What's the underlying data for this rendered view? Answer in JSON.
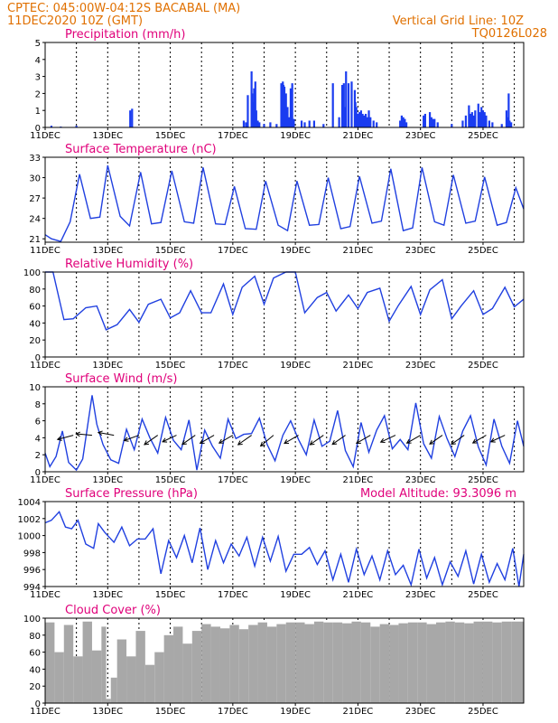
{
  "header": {
    "line1": "CPTEC:   045:00W-04:12S   BACABAL (MA)",
    "line2": "11DEC2020 10Z (GMT)",
    "grid_note": "Vertical Grid Line: 10Z",
    "model_id": "TQ0126L028"
  },
  "x_axis": {
    "start_day": 11,
    "end_day": 26.3,
    "tick_labels": [
      "11DEC",
      "13DEC",
      "15DEC",
      "17DEC",
      "19DEC",
      "21DEC",
      "23DEC",
      "25DEC"
    ],
    "tick_days": [
      11,
      13,
      15,
      17,
      19,
      21,
      23,
      25
    ]
  },
  "colors": {
    "line": "#2040e0",
    "bar": "#1a3cf0",
    "cloud": "#a8a8a8",
    "title": "#e0007a",
    "header": "#e07000"
  },
  "chart_data": [
    {
      "id": "precipitation",
      "type": "bar",
      "title": "Precipitation (mm/h)",
      "ylim": [
        0,
        5
      ],
      "yticks": [
        "0",
        "1",
        "2",
        "3",
        "4",
        "5"
      ],
      "grid": "dotted vertical at 10Z daily",
      "x_day": [
        11.2,
        11.5,
        12.0,
        13.72,
        13.78,
        17.35,
        17.42,
        17.48,
        17.6,
        17.62,
        17.65,
        17.68,
        17.72,
        17.75,
        17.8,
        17.85,
        18.0,
        18.2,
        18.4,
        18.55,
        18.6,
        18.62,
        18.65,
        18.7,
        18.75,
        18.8,
        18.85,
        18.9,
        18.95,
        19.2,
        19.3,
        19.45,
        19.6,
        19.9,
        20.2,
        20.4,
        20.5,
        20.55,
        20.6,
        20.62,
        20.7,
        20.8,
        20.9,
        20.92,
        20.95,
        21.0,
        21.05,
        21.1,
        21.15,
        21.2,
        21.25,
        21.3,
        21.35,
        21.4,
        21.5,
        21.6,
        22.35,
        22.4,
        22.45,
        22.5,
        22.55,
        23.1,
        23.15,
        23.3,
        23.35,
        23.4,
        23.45,
        23.55,
        24.0,
        24.35,
        24.45,
        24.55,
        24.6,
        24.65,
        24.7,
        24.75,
        24.85,
        24.9,
        24.95,
        25.0,
        25.05,
        25.1,
        25.2,
        25.3,
        25.6,
        25.75,
        25.8,
        25.82,
        25.85,
        25.9
      ],
      "values": [
        0.1,
        0.05,
        0.1,
        1.0,
        1.1,
        0.4,
        0.3,
        1.9,
        3.3,
        2.0,
        1.5,
        2.3,
        2.7,
        1.0,
        0.4,
        0.3,
        0.2,
        0.3,
        0.2,
        2.6,
        2.7,
        2.5,
        2.4,
        2.0,
        1.2,
        0.6,
        2.3,
        2.6,
        0.5,
        0.4,
        0.3,
        0.4,
        0.4,
        0.2,
        2.6,
        0.6,
        2.5,
        2.6,
        1.2,
        3.3,
        2.6,
        2.7,
        2.2,
        1.5,
        1.2,
        0.8,
        0.9,
        1.0,
        0.8,
        0.7,
        0.8,
        0.6,
        1.0,
        0.6,
        0.4,
        0.3,
        0.4,
        0.7,
        0.6,
        0.5,
        0.3,
        0.7,
        0.8,
        0.9,
        0.6,
        0.5,
        0.5,
        0.3,
        0.2,
        0.4,
        0.7,
        1.3,
        0.8,
        0.9,
        0.7,
        1.0,
        1.4,
        0.9,
        1.2,
        1.0,
        0.9,
        0.7,
        0.4,
        0.3,
        0.2,
        1.0,
        0.6,
        2.0,
        0.4,
        0.3
      ]
    },
    {
      "id": "temperature",
      "type": "line",
      "title": "Surface Temperature (nC)",
      "ylim": [
        20.5,
        33
      ],
      "yticks": [
        "21",
        "24",
        "27",
        "30",
        "33"
      ],
      "x_day": [
        11,
        11.2,
        11.5,
        11.8,
        12.1,
        12.45,
        12.75,
        13,
        13.4,
        13.7,
        14.05,
        14.4,
        14.7,
        15.05,
        15.45,
        15.75,
        16.05,
        16.45,
        16.75,
        17.05,
        17.4,
        17.75,
        18.05,
        18.45,
        18.75,
        19.05,
        19.45,
        19.75,
        20.05,
        20.45,
        20.75,
        21.05,
        21.45,
        21.75,
        22.05,
        22.45,
        22.75,
        23.05,
        23.45,
        23.75,
        24.05,
        24.45,
        24.75,
        25.05,
        25.45,
        25.75,
        26.05,
        26.3
      ],
      "values": [
        21.6,
        21.0,
        20.6,
        23.5,
        30.5,
        24.0,
        24.2,
        31.8,
        24.3,
        22.9,
        30.8,
        23.2,
        23.4,
        31.0,
        23.5,
        23.3,
        31.5,
        23.2,
        23.1,
        28.7,
        22.5,
        22.4,
        29.5,
        23.0,
        22.2,
        29.5,
        23.0,
        23.1,
        30.0,
        22.5,
        22.8,
        30.2,
        23.3,
        23.6,
        31.3,
        22.2,
        22.6,
        31.5,
        23.5,
        23.0,
        30.4,
        23.3,
        23.6,
        30.1,
        23.0,
        23.4,
        28.5,
        25.4
      ]
    },
    {
      "id": "humidity",
      "type": "line",
      "title": "Relative Humidity (%)",
      "ylim": [
        0,
        100
      ],
      "yticks": [
        "0",
        "20",
        "40",
        "60",
        "80",
        "100"
      ],
      "x_day": [
        11,
        11.25,
        11.6,
        11.9,
        12.3,
        12.65,
        12.95,
        13.3,
        13.7,
        14.0,
        14.3,
        14.7,
        15.0,
        15.3,
        15.65,
        16.0,
        16.3,
        16.7,
        17.0,
        17.3,
        17.7,
        18.0,
        18.3,
        18.7,
        19.0,
        19.3,
        19.7,
        20.0,
        20.3,
        20.7,
        21.0,
        21.3,
        21.7,
        22.0,
        22.3,
        22.7,
        23.0,
        23.3,
        23.7,
        24.0,
        24.3,
        24.7,
        25.0,
        25.3,
        25.7,
        26.0,
        26.3
      ],
      "values": [
        100,
        100,
        44,
        45,
        58,
        60,
        32,
        38,
        56,
        41,
        62,
        68,
        46,
        52,
        78,
        52,
        52,
        86,
        50,
        82,
        95,
        62,
        93,
        100,
        100,
        52,
        70,
        76,
        54,
        73,
        57,
        76,
        81,
        42,
        61,
        83,
        50,
        79,
        91,
        45,
        60,
        78,
        50,
        57,
        82,
        59,
        68
      ]
    },
    {
      "id": "wind",
      "type": "line",
      "title": "Surface Wind (m/s)",
      "ylim": [
        0,
        10
      ],
      "yticks": [
        "0",
        "2",
        "4",
        "6",
        "8",
        "10"
      ],
      "x_day": [
        11,
        11.15,
        11.35,
        11.55,
        11.75,
        12.0,
        12.2,
        12.5,
        12.65,
        12.85,
        13.1,
        13.35,
        13.6,
        13.85,
        14.1,
        14.35,
        14.6,
        14.85,
        15.1,
        15.35,
        15.6,
        15.85,
        16.1,
        16.35,
        16.6,
        16.85,
        17.1,
        17.35,
        17.6,
        17.85,
        18.1,
        18.35,
        18.6,
        18.85,
        19.1,
        19.35,
        19.6,
        19.85,
        20.1,
        20.35,
        20.6,
        20.85,
        21.1,
        21.35,
        21.6,
        21.85,
        22.1,
        22.35,
        22.6,
        22.85,
        23.1,
        23.35,
        23.6,
        23.85,
        24.1,
        24.35,
        24.6,
        24.85,
        25.1,
        25.35,
        25.6,
        25.85,
        26.1,
        26.3
      ],
      "values": [
        2.2,
        0.6,
        1.8,
        4.8,
        1.1,
        0.2,
        1.5,
        9.0,
        5.6,
        3.2,
        1.4,
        1.0,
        5.0,
        2.6,
        6.2,
        4.0,
        2.2,
        6.4,
        3.7,
        2.6,
        6.1,
        0.2,
        4.9,
        3.0,
        1.6,
        6.2,
        3.9,
        4.4,
        4.5,
        6.3,
        3.2,
        1.3,
        4.3,
        6.0,
        3.8,
        2.0,
        6.1,
        3.0,
        3.6,
        7.2,
        2.5,
        0.6,
        5.8,
        2.3,
        4.9,
        6.6,
        2.7,
        3.8,
        2.6,
        8.1,
        3.3,
        1.6,
        6.5,
        3.9,
        1.8,
        4.8,
        6.6,
        2.9,
        0.8,
        6.2,
        3.0,
        1.0,
        6.0,
        3.0
      ],
      "arrows": [
        {
          "day": 11.9,
          "dir_deg": 195,
          "speed": 4.5
        },
        {
          "day": 12.5,
          "dir_deg": 175,
          "speed": 4.4
        },
        {
          "day": 13.2,
          "dir_deg": 170,
          "speed": 4.3
        },
        {
          "day": 14.0,
          "dir_deg": 200,
          "speed": 4.2
        },
        {
          "day": 14.6,
          "dir_deg": 215,
          "speed": 4.5
        },
        {
          "day": 15.2,
          "dir_deg": 205,
          "speed": 4.0
        },
        {
          "day": 15.8,
          "dir_deg": 215,
          "speed": 4.3
        },
        {
          "day": 16.4,
          "dir_deg": 210,
          "speed": 4.4
        },
        {
          "day": 17.0,
          "dir_deg": 210,
          "speed": 4.2
        },
        {
          "day": 17.6,
          "dir_deg": 215,
          "speed": 4.6
        },
        {
          "day": 18.3,
          "dir_deg": 220,
          "speed": 4.8
        },
        {
          "day": 19.1,
          "dir_deg": 210,
          "speed": 4.5
        },
        {
          "day": 19.9,
          "dir_deg": 215,
          "speed": 4.6
        },
        {
          "day": 20.6,
          "dir_deg": 215,
          "speed": 4.3
        },
        {
          "day": 21.4,
          "dir_deg": 210,
          "speed": 4.4
        },
        {
          "day": 22.2,
          "dir_deg": 205,
          "speed": 4.5
        },
        {
          "day": 23.0,
          "dir_deg": 210,
          "speed": 4.2
        },
        {
          "day": 23.7,
          "dir_deg": 215,
          "speed": 4.0
        },
        {
          "day": 24.4,
          "dir_deg": 215,
          "speed": 4.2
        },
        {
          "day": 25.1,
          "dir_deg": 210,
          "speed": 4.0
        },
        {
          "day": 25.7,
          "dir_deg": 205,
          "speed": 4.0
        }
      ]
    },
    {
      "id": "pressure",
      "type": "line",
      "title": "Surface Pressure (hPa)",
      "annotation": "Model Altitude: 93.3096 m",
      "ylim": [
        994,
        1004
      ],
      "yticks": [
        "994",
        "996",
        "998",
        "1000",
        "1002",
        "1004"
      ],
      "x_day": [
        11,
        11.2,
        11.45,
        11.65,
        11.85,
        12.05,
        12.3,
        12.55,
        12.7,
        12.9,
        13.2,
        13.45,
        13.7,
        13.95,
        14.2,
        14.45,
        14.7,
        14.95,
        15.2,
        15.45,
        15.7,
        15.95,
        16.2,
        16.45,
        16.7,
        16.95,
        17.2,
        17.45,
        17.7,
        17.95,
        18.2,
        18.45,
        18.7,
        18.95,
        19.2,
        19.45,
        19.7,
        19.95,
        20.2,
        20.45,
        20.7,
        20.95,
        21.2,
        21.45,
        21.7,
        21.95,
        22.2,
        22.45,
        22.7,
        22.95,
        23.2,
        23.45,
        23.7,
        23.95,
        24.2,
        24.45,
        24.7,
        24.95,
        25.2,
        25.45,
        25.7,
        25.95,
        26.15,
        26.3
      ],
      "values": [
        1001.5,
        1001.8,
        1002.8,
        1001.0,
        1000.8,
        1001.8,
        999.0,
        998.5,
        1001.4,
        1000.4,
        999.2,
        1001.0,
        998.8,
        999.6,
        999.6,
        1000.8,
        995.5,
        999.4,
        997.4,
        1000.0,
        996.8,
        1000.9,
        996.0,
        999.4,
        996.8,
        999.0,
        997.6,
        999.8,
        996.4,
        999.8,
        997.0,
        999.9,
        995.8,
        997.8,
        997.8,
        998.6,
        996.6,
        998.2,
        994.8,
        997.8,
        994.5,
        998.4,
        995.4,
        997.6,
        994.8,
        998.2,
        995.4,
        996.5,
        994.2,
        998.4,
        995.0,
        997.4,
        994.2,
        996.9,
        995.2,
        998.2,
        994.3,
        997.8,
        994.5,
        996.7,
        994.8,
        998.5,
        994.0,
        997.8
      ]
    },
    {
      "id": "cloud",
      "type": "area",
      "title": "Cloud Cover (%)",
      "ylim": [
        0,
        100
      ],
      "yticks": [
        "0",
        "20",
        "40",
        "60",
        "80",
        "100"
      ],
      "x_day": [
        11.0,
        11.3,
        11.6,
        11.9,
        12.2,
        12.5,
        12.8,
        12.95,
        13.1,
        13.3,
        13.6,
        13.9,
        14.2,
        14.5,
        14.8,
        15.1,
        15.4,
        15.7,
        16.0,
        16.3,
        16.6,
        16.9,
        17.2,
        17.5,
        17.8,
        18.1,
        18.4,
        18.7,
        19.0,
        19.3,
        19.6,
        19.9,
        20.2,
        20.5,
        20.8,
        21.1,
        21.4,
        21.7,
        22.0,
        22.3,
        22.6,
        22.9,
        23.2,
        23.5,
        23.8,
        24.1,
        24.4,
        24.7,
        25.0,
        25.3,
        25.6,
        25.9,
        26.3
      ],
      "values": [
        95,
        60,
        92,
        55,
        96,
        62,
        90,
        5,
        30,
        75,
        55,
        85,
        45,
        60,
        80,
        90,
        70,
        85,
        93,
        90,
        88,
        92,
        87,
        92,
        95,
        90,
        93,
        95,
        95,
        93,
        96,
        95,
        95,
        94,
        96,
        95,
        90,
        93,
        92,
        94,
        95,
        95,
        93,
        95,
        96,
        95,
        94,
        96,
        96,
        95,
        96,
        96,
        97
      ]
    }
  ]
}
